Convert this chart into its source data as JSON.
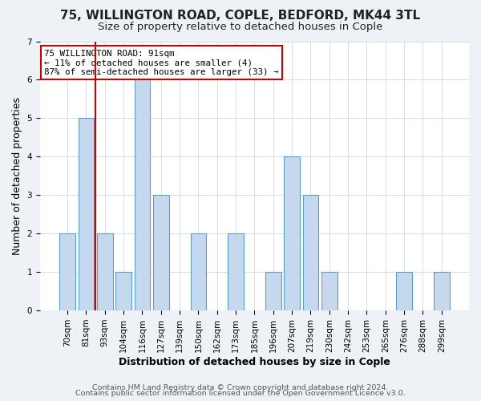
{
  "title": "75, WILLINGTON ROAD, COPLE, BEDFORD, MK44 3TL",
  "subtitle": "Size of property relative to detached houses in Cople",
  "xlabel": "Distribution of detached houses by size in Cople",
  "ylabel": "Number of detached properties",
  "categories": [
    "70sqm",
    "81sqm",
    "93sqm",
    "104sqm",
    "116sqm",
    "127sqm",
    "139sqm",
    "150sqm",
    "162sqm",
    "173sqm",
    "185sqm",
    "196sqm",
    "207sqm",
    "219sqm",
    "230sqm",
    "242sqm",
    "253sqm",
    "265sqm",
    "276sqm",
    "288sqm",
    "299sqm"
  ],
  "values": [
    2,
    5,
    2,
    1,
    6,
    3,
    0,
    2,
    0,
    2,
    0,
    1,
    4,
    3,
    1,
    0,
    0,
    0,
    1,
    0,
    1
  ],
  "bar_color": "#c5d8ed",
  "bar_edge_color": "#5a9fd4",
  "vline_x": 1.5,
  "vline_color": "#cc0000",
  "annotation_text": "75 WILLINGTON ROAD: 91sqm\n← 11% of detached houses are smaller (4)\n87% of semi-detached houses are larger (33) →",
  "annotation_box_color": "white",
  "annotation_box_edge_color": "#cc0000",
  "ylim": [
    0,
    7
  ],
  "yticks": [
    0,
    1,
    2,
    3,
    4,
    5,
    6,
    7
  ],
  "footer_line1": "Contains HM Land Registry data © Crown copyright and database right 2024.",
  "footer_line2": "Contains public sector information licensed under the Open Government Licence v3.0.",
  "background_color": "#eef2f7",
  "plot_background_color": "#ffffff",
  "title_fontsize": 11,
  "subtitle_fontsize": 9.5,
  "axis_label_fontsize": 9,
  "tick_fontsize": 7.5,
  "footer_fontsize": 6.8
}
